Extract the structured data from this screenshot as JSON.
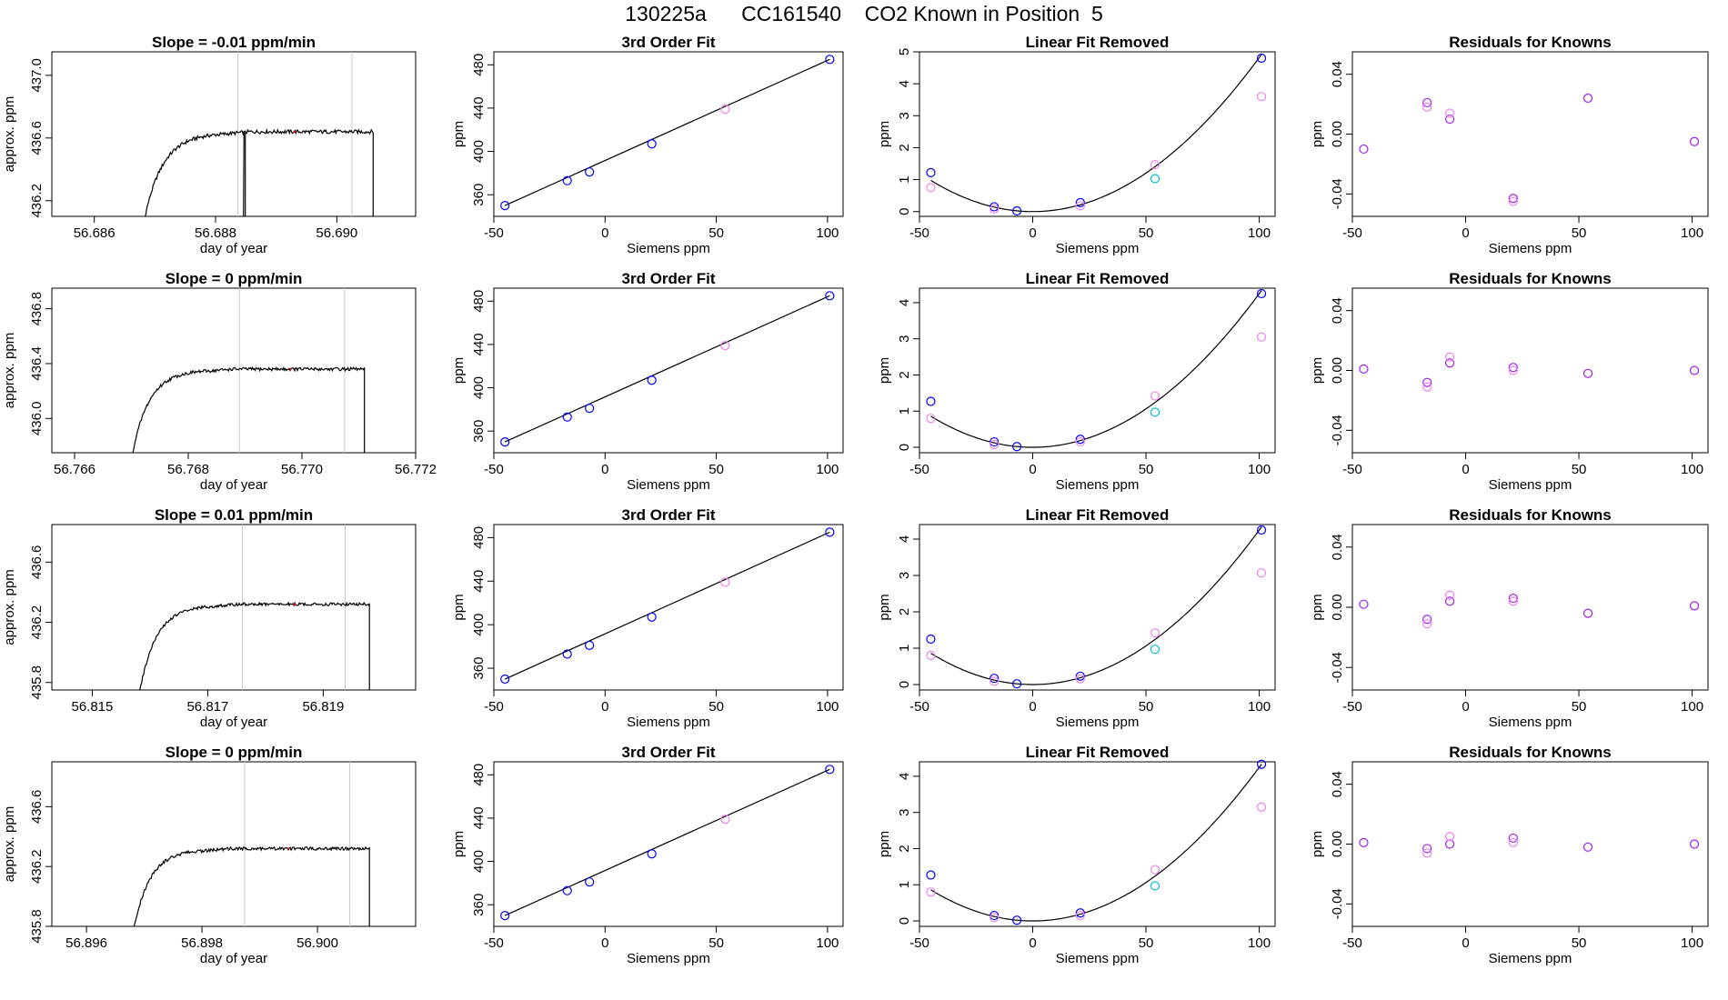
{
  "figure": {
    "title": "130225a      CC161540    CO2 Known in Position  5"
  },
  "labels": {
    "day_of_year": "day of year",
    "approx_ppm": "approx. ppm",
    "ppm": "ppm",
    "siemens_ppm": "Siemens ppm"
  },
  "colors": {
    "line": "#000000",
    "gray_line": "#c8c8c8",
    "blue": "#0000ff",
    "violet": "#a020f0",
    "magenta": "#ee82ee",
    "cyan": "#00bcd4",
    "red": "#ff0000"
  },
  "chart_data": [
    {
      "type": "line",
      "row": 1,
      "panel": "timeseries",
      "title": "Slope =  -0.01  ppm/min",
      "xlabel": "day of year",
      "ylabel": "approx. ppm",
      "xlim": [
        56.6853,
        56.6913
      ],
      "ylim": [
        436.1,
        437.15
      ],
      "xticks": [
        56.686,
        56.688,
        56.69
      ],
      "xticklabels": [
        "56.686",
        "56.688",
        "56.690"
      ],
      "yticks": [
        436.2,
        436.6,
        437.0
      ],
      "yticklabels": [
        "436.2",
        "436.6",
        "437.0"
      ],
      "start": 56.6867,
      "end": 56.6906,
      "plateau": 436.64,
      "amp": 0.012,
      "rise_end_frac": 0.33,
      "spike": {
        "x": 56.68846,
        "to": 436.1
      },
      "vlines": [
        56.68837,
        56.69025
      ],
      "red_x": 56.6893
    },
    {
      "type": "scatter",
      "row": 1,
      "panel": "fit",
      "title": "3rd Order Fit",
      "xlabel": "Siemens ppm",
      "ylabel": "ppm",
      "xlim": [
        -50,
        107
      ],
      "ylim": [
        340,
        492
      ],
      "xticks": [
        -50,
        0,
        50,
        100
      ],
      "yticks": [
        360,
        400,
        440,
        480
      ],
      "line": {
        "x": [
          -45,
          101
        ],
        "y": [
          350,
          485
        ]
      },
      "points": [
        {
          "x": -45,
          "y": 350,
          "color": "blue"
        },
        {
          "x": -17,
          "y": 373,
          "color": "blue"
        },
        {
          "x": -7,
          "y": 381,
          "color": "blue"
        },
        {
          "x": 21,
          "y": 407,
          "color": "blue"
        },
        {
          "x": 54,
          "y": 439,
          "color": "magenta"
        },
        {
          "x": 101,
          "y": 485,
          "color": "blue"
        }
      ]
    },
    {
      "type": "scatter",
      "row": 1,
      "panel": "linear",
      "title": "Linear Fit Removed",
      "xlabel": "Siemens ppm",
      "ylabel": "ppm",
      "xlim": [
        -50,
        107
      ],
      "ylim": [
        -0.15,
        5.0
      ],
      "xticks": [
        -50,
        0,
        50,
        100
      ],
      "yticks": [
        0,
        1,
        2,
        3,
        4,
        5
      ],
      "curve": {
        "a": 0.000482,
        "vertex": 0,
        "min": 0.0
      },
      "points": [
        {
          "x": -45,
          "y": 1.22,
          "color": "blue"
        },
        {
          "x": -45,
          "y": 0.75,
          "color": "magenta"
        },
        {
          "x": -17,
          "y": 0.15,
          "color": "blue"
        },
        {
          "x": -17,
          "y": 0.08,
          "color": "magenta"
        },
        {
          "x": -7,
          "y": 0.02,
          "color": "blue"
        },
        {
          "x": 21,
          "y": 0.28,
          "color": "blue"
        },
        {
          "x": 21,
          "y": 0.18,
          "color": "magenta"
        },
        {
          "x": 54,
          "y": 1.47,
          "color": "magenta"
        },
        {
          "x": 54,
          "y": 1.03,
          "color": "cyan"
        },
        {
          "x": 101,
          "y": 4.8,
          "color": "blue"
        },
        {
          "x": 101,
          "y": 3.6,
          "color": "magenta"
        }
      ]
    },
    {
      "type": "scatter",
      "row": 1,
      "panel": "residuals",
      "title": "Residuals for Knowns",
      "xlabel": "Siemens ppm",
      "ylabel": "ppm",
      "xlim": [
        -50,
        107
      ],
      "ylim": [
        -0.055,
        0.055
      ],
      "xticks": [
        -50,
        0,
        50,
        100
      ],
      "yticks": [
        -0.04,
        0.0,
        0.04
      ],
      "yticklabels": [
        "-0.04",
        "0.00",
        "0.04"
      ],
      "points": [
        {
          "x": -45,
          "y": -0.01,
          "color": "violet"
        },
        {
          "x": -17,
          "y": 0.021,
          "color": "violet"
        },
        {
          "x": -17,
          "y": 0.018,
          "color": "magenta"
        },
        {
          "x": -7,
          "y": 0.01,
          "color": "violet"
        },
        {
          "x": -7,
          "y": 0.014,
          "color": "magenta"
        },
        {
          "x": 21,
          "y": -0.043,
          "color": "violet"
        },
        {
          "x": 21,
          "y": -0.045,
          "color": "magenta"
        },
        {
          "x": 54,
          "y": 0.024,
          "color": "violet"
        },
        {
          "x": 101,
          "y": -0.005,
          "color": "violet"
        }
      ]
    },
    {
      "type": "line",
      "row": 2,
      "panel": "timeseries",
      "title": "Slope =  0  ppm/min",
      "xlabel": "day of year",
      "ylabel": "approx. ppm",
      "xlim": [
        56.7656,
        56.772
      ],
      "ylim": [
        435.75,
        436.95
      ],
      "xticks": [
        56.766,
        56.768,
        56.77,
        56.772
      ],
      "xticklabels": [
        "56.766",
        "56.768",
        "56.770",
        "56.772"
      ],
      "yticks": [
        436.0,
        436.4,
        436.8
      ],
      "yticklabels": [
        "436.0",
        "436.4",
        "436.8"
      ],
      "start": 56.7669,
      "end": 56.7711,
      "plateau": 436.36,
      "amp": 0.012,
      "rise_end_frac": 0.3,
      "vlines": [
        56.7689,
        56.77075
      ],
      "red_x": 56.7698
    },
    {
      "type": "scatter",
      "row": 2,
      "panel": "fit",
      "title": "3rd Order Fit",
      "xlabel": "Siemens ppm",
      "ylabel": "ppm",
      "xlim": [
        -50,
        107
      ],
      "ylim": [
        340,
        492
      ],
      "xticks": [
        -50,
        0,
        50,
        100
      ],
      "yticks": [
        360,
        400,
        440,
        480
      ],
      "line": {
        "x": [
          -45,
          101
        ],
        "y": [
          350,
          485
        ]
      },
      "points": [
        {
          "x": -45,
          "y": 350,
          "color": "blue"
        },
        {
          "x": -17,
          "y": 373,
          "color": "blue"
        },
        {
          "x": -7,
          "y": 381,
          "color": "blue"
        },
        {
          "x": 21,
          "y": 407,
          "color": "blue"
        },
        {
          "x": 54,
          "y": 439,
          "color": "magenta"
        },
        {
          "x": 101,
          "y": 485,
          "color": "blue"
        }
      ]
    },
    {
      "type": "scatter",
      "row": 2,
      "panel": "linear",
      "title": "Linear Fit Removed",
      "xlabel": "Siemens ppm",
      "ylabel": "ppm",
      "xlim": [
        -50,
        107
      ],
      "ylim": [
        -0.15,
        4.4
      ],
      "xticks": [
        -50,
        0,
        50,
        100
      ],
      "yticks": [
        0,
        1,
        2,
        3,
        4
      ],
      "curve": {
        "a": 0.000425,
        "vertex": 0,
        "min": 0.0
      },
      "points": [
        {
          "x": -45,
          "y": 1.27,
          "color": "blue"
        },
        {
          "x": -45,
          "y": 0.8,
          "color": "magenta"
        },
        {
          "x": -17,
          "y": 0.15,
          "color": "blue"
        },
        {
          "x": -17,
          "y": 0.08,
          "color": "magenta"
        },
        {
          "x": -7,
          "y": 0.02,
          "color": "blue"
        },
        {
          "x": 21,
          "y": 0.22,
          "color": "blue"
        },
        {
          "x": 21,
          "y": 0.15,
          "color": "magenta"
        },
        {
          "x": 54,
          "y": 1.42,
          "color": "magenta"
        },
        {
          "x": 54,
          "y": 0.97,
          "color": "cyan"
        },
        {
          "x": 101,
          "y": 4.25,
          "color": "blue"
        },
        {
          "x": 101,
          "y": 3.05,
          "color": "magenta"
        }
      ]
    },
    {
      "type": "scatter",
      "row": 2,
      "panel": "residuals",
      "title": "Residuals for Knowns",
      "xlabel": "Siemens ppm",
      "ylabel": "ppm",
      "xlim": [
        -50,
        107
      ],
      "ylim": [
        -0.055,
        0.055
      ],
      "xticks": [
        -50,
        0,
        50,
        100
      ],
      "yticks": [
        -0.04,
        0.0,
        0.04
      ],
      "yticklabels": [
        "-0.04",
        "0.00",
        "0.04"
      ],
      "points": [
        {
          "x": -45,
          "y": 0.001,
          "color": "violet"
        },
        {
          "x": -17,
          "y": -0.008,
          "color": "violet"
        },
        {
          "x": -17,
          "y": -0.011,
          "color": "magenta"
        },
        {
          "x": -7,
          "y": 0.005,
          "color": "violet"
        },
        {
          "x": -7,
          "y": 0.009,
          "color": "magenta"
        },
        {
          "x": 21,
          "y": 0.002,
          "color": "violet"
        },
        {
          "x": 21,
          "y": 0.0,
          "color": "magenta"
        },
        {
          "x": 54,
          "y": -0.002,
          "color": "violet"
        },
        {
          "x": 101,
          "y": 0.0,
          "color": "violet"
        }
      ]
    },
    {
      "type": "line",
      "row": 3,
      "panel": "timeseries",
      "title": "Slope =  0.01  ppm/min",
      "xlabel": "day of year",
      "ylabel": "approx. ppm",
      "xlim": [
        56.8143,
        56.8206
      ],
      "ylim": [
        435.75,
        436.85
      ],
      "xticks": [
        56.815,
        56.817,
        56.819
      ],
      "xticklabels": [
        "56.815",
        "56.817",
        "56.819"
      ],
      "yticks": [
        435.8,
        436.2,
        436.6
      ],
      "yticklabels": [
        "435.8",
        "436.2",
        "436.6"
      ],
      "start": 56.8157,
      "end": 56.8198,
      "plateau": 436.32,
      "amp": 0.01,
      "rise_end_frac": 0.3,
      "vlines": [
        56.8176,
        56.81938
      ],
      "red_x": 56.8185
    },
    {
      "type": "scatter",
      "row": 3,
      "panel": "fit",
      "title": "3rd Order Fit",
      "xlabel": "Siemens ppm",
      "ylabel": "ppm",
      "xlim": [
        -50,
        107
      ],
      "ylim": [
        340,
        492
      ],
      "xticks": [
        -50,
        0,
        50,
        100
      ],
      "yticks": [
        360,
        400,
        440,
        480
      ],
      "line": {
        "x": [
          -45,
          101
        ],
        "y": [
          350,
          485
        ]
      },
      "points": [
        {
          "x": -45,
          "y": 350,
          "color": "blue"
        },
        {
          "x": -17,
          "y": 373,
          "color": "blue"
        },
        {
          "x": -7,
          "y": 381,
          "color": "blue"
        },
        {
          "x": 21,
          "y": 407,
          "color": "blue"
        },
        {
          "x": 54,
          "y": 439,
          "color": "magenta"
        },
        {
          "x": 101,
          "y": 485,
          "color": "blue"
        }
      ]
    },
    {
      "type": "scatter",
      "row": 3,
      "panel": "linear",
      "title": "Linear Fit Removed",
      "xlabel": "Siemens ppm",
      "ylabel": "ppm",
      "xlim": [
        -50,
        107
      ],
      "ylim": [
        -0.15,
        4.4
      ],
      "xticks": [
        -50,
        0,
        50,
        100
      ],
      "yticks": [
        0,
        1,
        2,
        3,
        4
      ],
      "curve": {
        "a": 0.000425,
        "vertex": 0,
        "min": 0.0
      },
      "points": [
        {
          "x": -45,
          "y": 1.25,
          "color": "blue"
        },
        {
          "x": -45,
          "y": 0.8,
          "color": "magenta"
        },
        {
          "x": -17,
          "y": 0.17,
          "color": "blue"
        },
        {
          "x": -17,
          "y": 0.09,
          "color": "magenta"
        },
        {
          "x": -7,
          "y": 0.02,
          "color": "blue"
        },
        {
          "x": 21,
          "y": 0.23,
          "color": "blue"
        },
        {
          "x": 21,
          "y": 0.16,
          "color": "magenta"
        },
        {
          "x": 54,
          "y": 1.42,
          "color": "magenta"
        },
        {
          "x": 54,
          "y": 0.97,
          "color": "cyan"
        },
        {
          "x": 101,
          "y": 4.25,
          "color": "blue"
        },
        {
          "x": 101,
          "y": 3.07,
          "color": "magenta"
        }
      ]
    },
    {
      "type": "scatter",
      "row": 3,
      "panel": "residuals",
      "title": "Residuals for Knowns",
      "xlabel": "Siemens ppm",
      "ylabel": "ppm",
      "xlim": [
        -50,
        107
      ],
      "ylim": [
        -0.055,
        0.055
      ],
      "xticks": [
        -50,
        0,
        50,
        100
      ],
      "yticks": [
        -0.04,
        0.0,
        0.04
      ],
      "yticklabels": [
        "-0.04",
        "0.00",
        "0.04"
      ],
      "points": [
        {
          "x": -45,
          "y": 0.002,
          "color": "violet"
        },
        {
          "x": -17,
          "y": -0.008,
          "color": "violet"
        },
        {
          "x": -17,
          "y": -0.011,
          "color": "magenta"
        },
        {
          "x": -7,
          "y": 0.004,
          "color": "violet"
        },
        {
          "x": -7,
          "y": 0.008,
          "color": "magenta"
        },
        {
          "x": 21,
          "y": 0.006,
          "color": "violet"
        },
        {
          "x": 21,
          "y": 0.004,
          "color": "magenta"
        },
        {
          "x": 54,
          "y": -0.004,
          "color": "violet"
        },
        {
          "x": 101,
          "y": 0.001,
          "color": "violet"
        }
      ]
    },
    {
      "type": "line",
      "row": 4,
      "panel": "timeseries",
      "title": "Slope =  0  ppm/min",
      "xlabel": "day of year",
      "ylabel": "approx. ppm",
      "xlim": [
        56.8954,
        56.9017
      ],
      "ylim": [
        435.8,
        436.9
      ],
      "xticks": [
        56.896,
        56.898,
        56.9
      ],
      "xticklabels": [
        "56.896",
        "56.898",
        "56.900"
      ],
      "yticks": [
        435.8,
        436.2,
        436.6
      ],
      "yticklabels": [
        "435.8",
        "436.2",
        "436.6"
      ],
      "start": 56.8967,
      "end": 56.9009,
      "plateau": 436.32,
      "amp": 0.01,
      "rise_end_frac": 0.28,
      "vlines": [
        56.89874,
        56.90056
      ],
      "red_x": 56.8995
    },
    {
      "type": "scatter",
      "row": 4,
      "panel": "fit",
      "title": "3rd Order Fit",
      "xlabel": "Siemens ppm",
      "ylabel": "ppm",
      "xlim": [
        -50,
        107
      ],
      "ylim": [
        340,
        492
      ],
      "xticks": [
        -50,
        0,
        50,
        100
      ],
      "yticks": [
        360,
        400,
        440,
        480
      ],
      "line": {
        "x": [
          -45,
          101
        ],
        "y": [
          350,
          485
        ]
      },
      "points": [
        {
          "x": -45,
          "y": 350,
          "color": "blue"
        },
        {
          "x": -17,
          "y": 373,
          "color": "blue"
        },
        {
          "x": -7,
          "y": 381,
          "color": "blue"
        },
        {
          "x": 21,
          "y": 407,
          "color": "blue"
        },
        {
          "x": 54,
          "y": 439,
          "color": "magenta"
        },
        {
          "x": 101,
          "y": 485,
          "color": "blue"
        }
      ]
    },
    {
      "type": "scatter",
      "row": 4,
      "panel": "linear",
      "title": "Linear Fit Removed",
      "xlabel": "Siemens ppm",
      "ylabel": "ppm",
      "xlim": [
        -50,
        107
      ],
      "ylim": [
        -0.15,
        4.4
      ],
      "xticks": [
        -50,
        0,
        50,
        100
      ],
      "yticks": [
        0,
        1,
        2,
        3,
        4
      ],
      "curve": {
        "a": 0.000425,
        "vertex": 0,
        "min": 0.0
      },
      "points": [
        {
          "x": -45,
          "y": 1.27,
          "color": "blue"
        },
        {
          "x": -45,
          "y": 0.8,
          "color": "magenta"
        },
        {
          "x": -17,
          "y": 0.15,
          "color": "blue"
        },
        {
          "x": -17,
          "y": 0.09,
          "color": "magenta"
        },
        {
          "x": -7,
          "y": 0.02,
          "color": "blue"
        },
        {
          "x": 21,
          "y": 0.22,
          "color": "blue"
        },
        {
          "x": 21,
          "y": 0.15,
          "color": "magenta"
        },
        {
          "x": 54,
          "y": 1.42,
          "color": "magenta"
        },
        {
          "x": 54,
          "y": 0.97,
          "color": "cyan"
        },
        {
          "x": 101,
          "y": 4.33,
          "color": "blue"
        },
        {
          "x": 101,
          "y": 3.15,
          "color": "magenta"
        }
      ]
    },
    {
      "type": "scatter",
      "row": 4,
      "panel": "residuals",
      "title": "Residuals for Knowns",
      "xlabel": "Siemens ppm",
      "ylabel": "ppm",
      "xlim": [
        -50,
        107
      ],
      "ylim": [
        -0.055,
        0.055
      ],
      "xticks": [
        -50,
        0,
        50,
        100
      ],
      "yticks": [
        -0.04,
        0.0,
        0.04
      ],
      "yticklabels": [
        "-0.04",
        "0.00",
        "0.04"
      ],
      "points": [
        {
          "x": -45,
          "y": 0.001,
          "color": "violet"
        },
        {
          "x": -17,
          "y": -0.003,
          "color": "violet"
        },
        {
          "x": -17,
          "y": -0.006,
          "color": "magenta"
        },
        {
          "x": -7,
          "y": 0.0,
          "color": "violet"
        },
        {
          "x": -7,
          "y": 0.005,
          "color": "magenta"
        },
        {
          "x": 21,
          "y": 0.004,
          "color": "violet"
        },
        {
          "x": 21,
          "y": 0.001,
          "color": "magenta"
        },
        {
          "x": 54,
          "y": -0.002,
          "color": "violet"
        },
        {
          "x": 101,
          "y": 0.0,
          "color": "violet"
        }
      ]
    }
  ]
}
